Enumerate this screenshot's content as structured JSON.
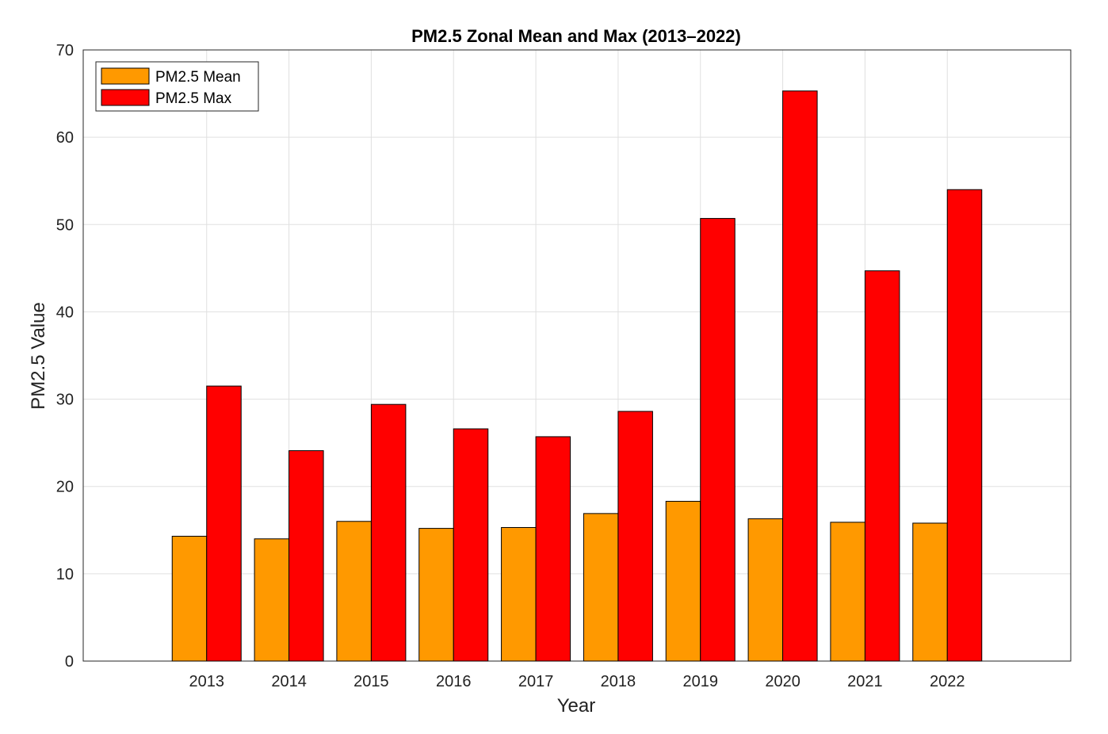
{
  "chart_data": {
    "type": "bar",
    "title": "PM2.5 Zonal Mean and Max (2013–2022)",
    "xlabel": "Year",
    "ylabel": "PM2.5 Value",
    "categories": [
      "2013",
      "2014",
      "2015",
      "2016",
      "2017",
      "2018",
      "2019",
      "2020",
      "2021",
      "2022"
    ],
    "series": [
      {
        "name": "PM2.5 Mean",
        "color": "#ff9900",
        "values": [
          14.3,
          14.0,
          16.0,
          15.2,
          15.3,
          16.9,
          18.3,
          16.3,
          15.9,
          15.8
        ]
      },
      {
        "name": "PM2.5 Max",
        "color": "#ff0000",
        "values": [
          31.5,
          24.1,
          29.4,
          26.6,
          25.7,
          28.6,
          50.7,
          65.3,
          44.7,
          54.0
        ]
      }
    ],
    "ylim": [
      0,
      70
    ],
    "yticks": [
      "0",
      "10",
      "20",
      "30",
      "40",
      "50",
      "60",
      "70"
    ],
    "grid": true,
    "legend_position": "top-left"
  }
}
